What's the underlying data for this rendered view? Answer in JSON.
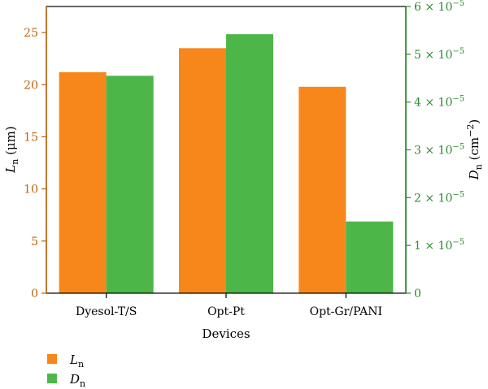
{
  "colors": {
    "left_axis": "#c0630a",
    "right_axis": "#2e8b2e",
    "ln_bar": "#f7871a",
    "dn_bar": "#4cb748",
    "frame": "#000000"
  },
  "chart_data": {
    "type": "bar",
    "categories": [
      "Dyesol-T/S",
      "Opt-Pt",
      "Opt-Gr/PANI"
    ],
    "xlabel": "Devices",
    "left_axis": {
      "label_var": "L",
      "label_sub": "n",
      "label_unit": " (μm)",
      "ylim": [
        0,
        27.5
      ],
      "ticks": [
        0,
        5,
        10,
        15,
        20,
        25
      ],
      "tick_labels": [
        "0",
        "5",
        "10",
        "15",
        "20",
        "25"
      ]
    },
    "right_axis": {
      "label_var": "D",
      "label_sub": "n",
      "label_unit_pre": " (cm",
      "label_unit_exp": "−2",
      "label_unit_post": ")",
      "ylim": [
        0,
        6e-05
      ],
      "ticks": [
        0,
        1e-05,
        2e-05,
        3e-05,
        4e-05,
        5e-05,
        6e-05
      ],
      "tick_labels": [
        {
          "base": "0",
          "exp": ""
        },
        {
          "base": "1 × 10",
          "exp": "−5"
        },
        {
          "base": "2 × 10",
          "exp": "−5"
        },
        {
          "base": "3 × 10",
          "exp": "−5"
        },
        {
          "base": "4 × 10",
          "exp": "−5"
        },
        {
          "base": "5 × 10",
          "exp": "−5"
        },
        {
          "base": "6 × 10",
          "exp": "−5"
        }
      ]
    },
    "series": [
      {
        "name": "Ln",
        "legend_var": "L",
        "legend_sub": "n",
        "axis": "left",
        "values": [
          21.2,
          23.5,
          19.8
        ]
      },
      {
        "name": "Dn",
        "legend_var": "D",
        "legend_sub": "n",
        "axis": "right",
        "values": [
          4.55e-05,
          5.42e-05,
          1.5e-05
        ]
      }
    ],
    "grid": false,
    "legend_position": "bottom-left"
  }
}
